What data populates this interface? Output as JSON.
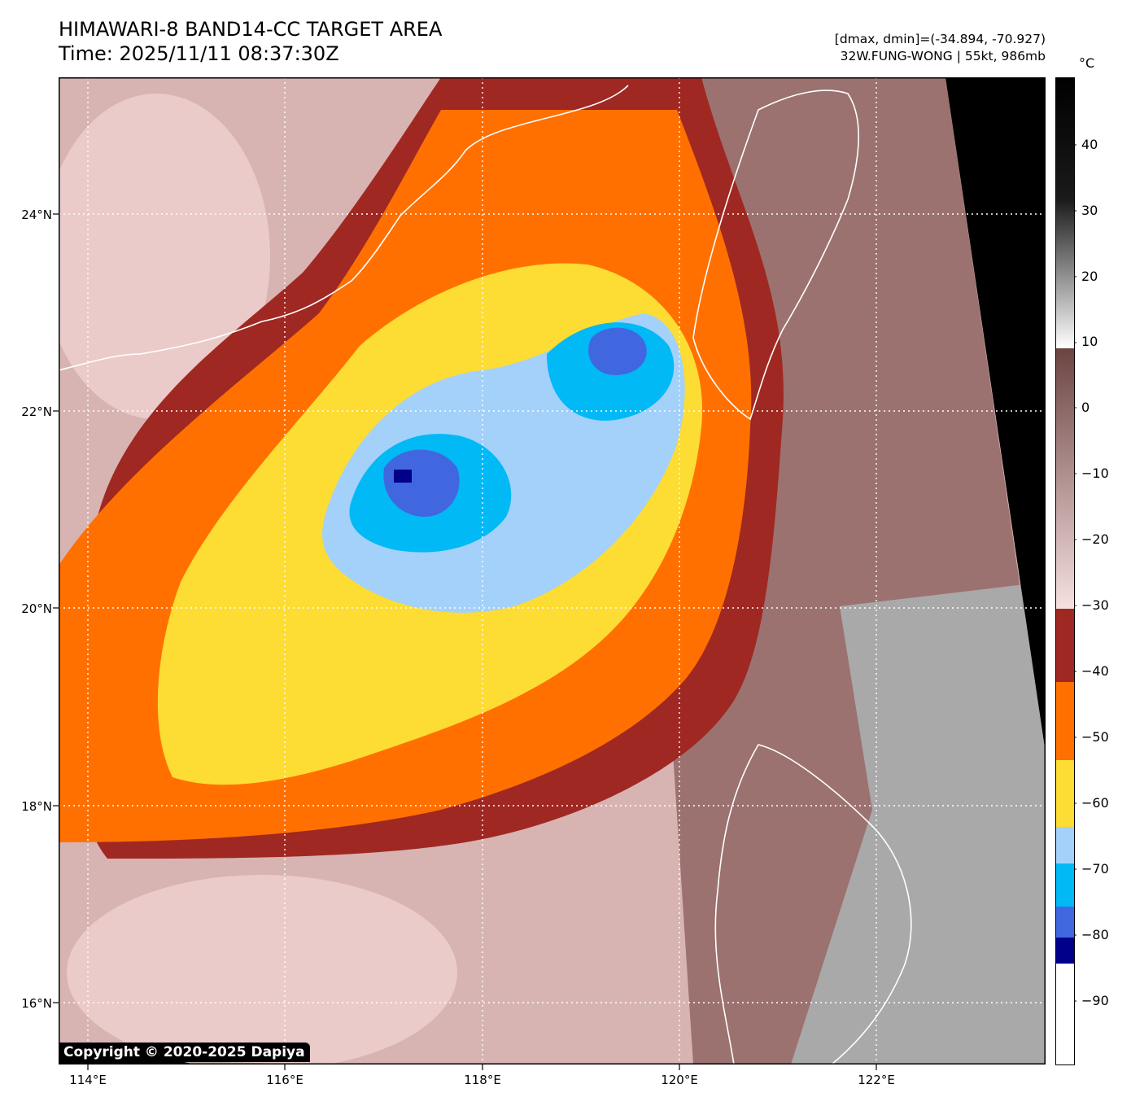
{
  "header": {
    "title_line1": "HIMAWARI-8 BAND14-CC TARGET AREA",
    "title_line2": "Time: 2025/11/11 08:37:30Z",
    "meta_line1": "[dmax, dmin]=(-34.894, -70.927)",
    "meta_line2": "32W.FUNG-WONG | 55kt, 986mb"
  },
  "map": {
    "lat_labels": [
      "24°N",
      "22°N",
      "20°N",
      "18°N",
      "16°N"
    ],
    "lon_labels": [
      "114°E",
      "116°E",
      "118°E",
      "120°E",
      "122°E"
    ],
    "copyright": "Copyright © 2020-2025 Dapiya"
  },
  "colorbar": {
    "unit": "°C",
    "tick_labels": [
      "40",
      "30",
      "20",
      "10",
      "0",
      "−10",
      "−20",
      "−30",
      "−40",
      "−50",
      "−60",
      "−70",
      "−80",
      "−90"
    ],
    "colors": {
      "warm_black": "#000000",
      "mid_gray": "#7a7a7a",
      "light": "#f3f3f3",
      "brown": "#8a5a55",
      "pink": "#f3d6d6",
      "dark_red": "#a02822",
      "orange": "#ff7000",
      "yellow": "#fddc33",
      "light_blue": "#a3d1fa",
      "cyan": "#00b9f5",
      "royal_blue": "#4167e0",
      "navy": "#00008b",
      "white": "#ffffff"
    }
  }
}
